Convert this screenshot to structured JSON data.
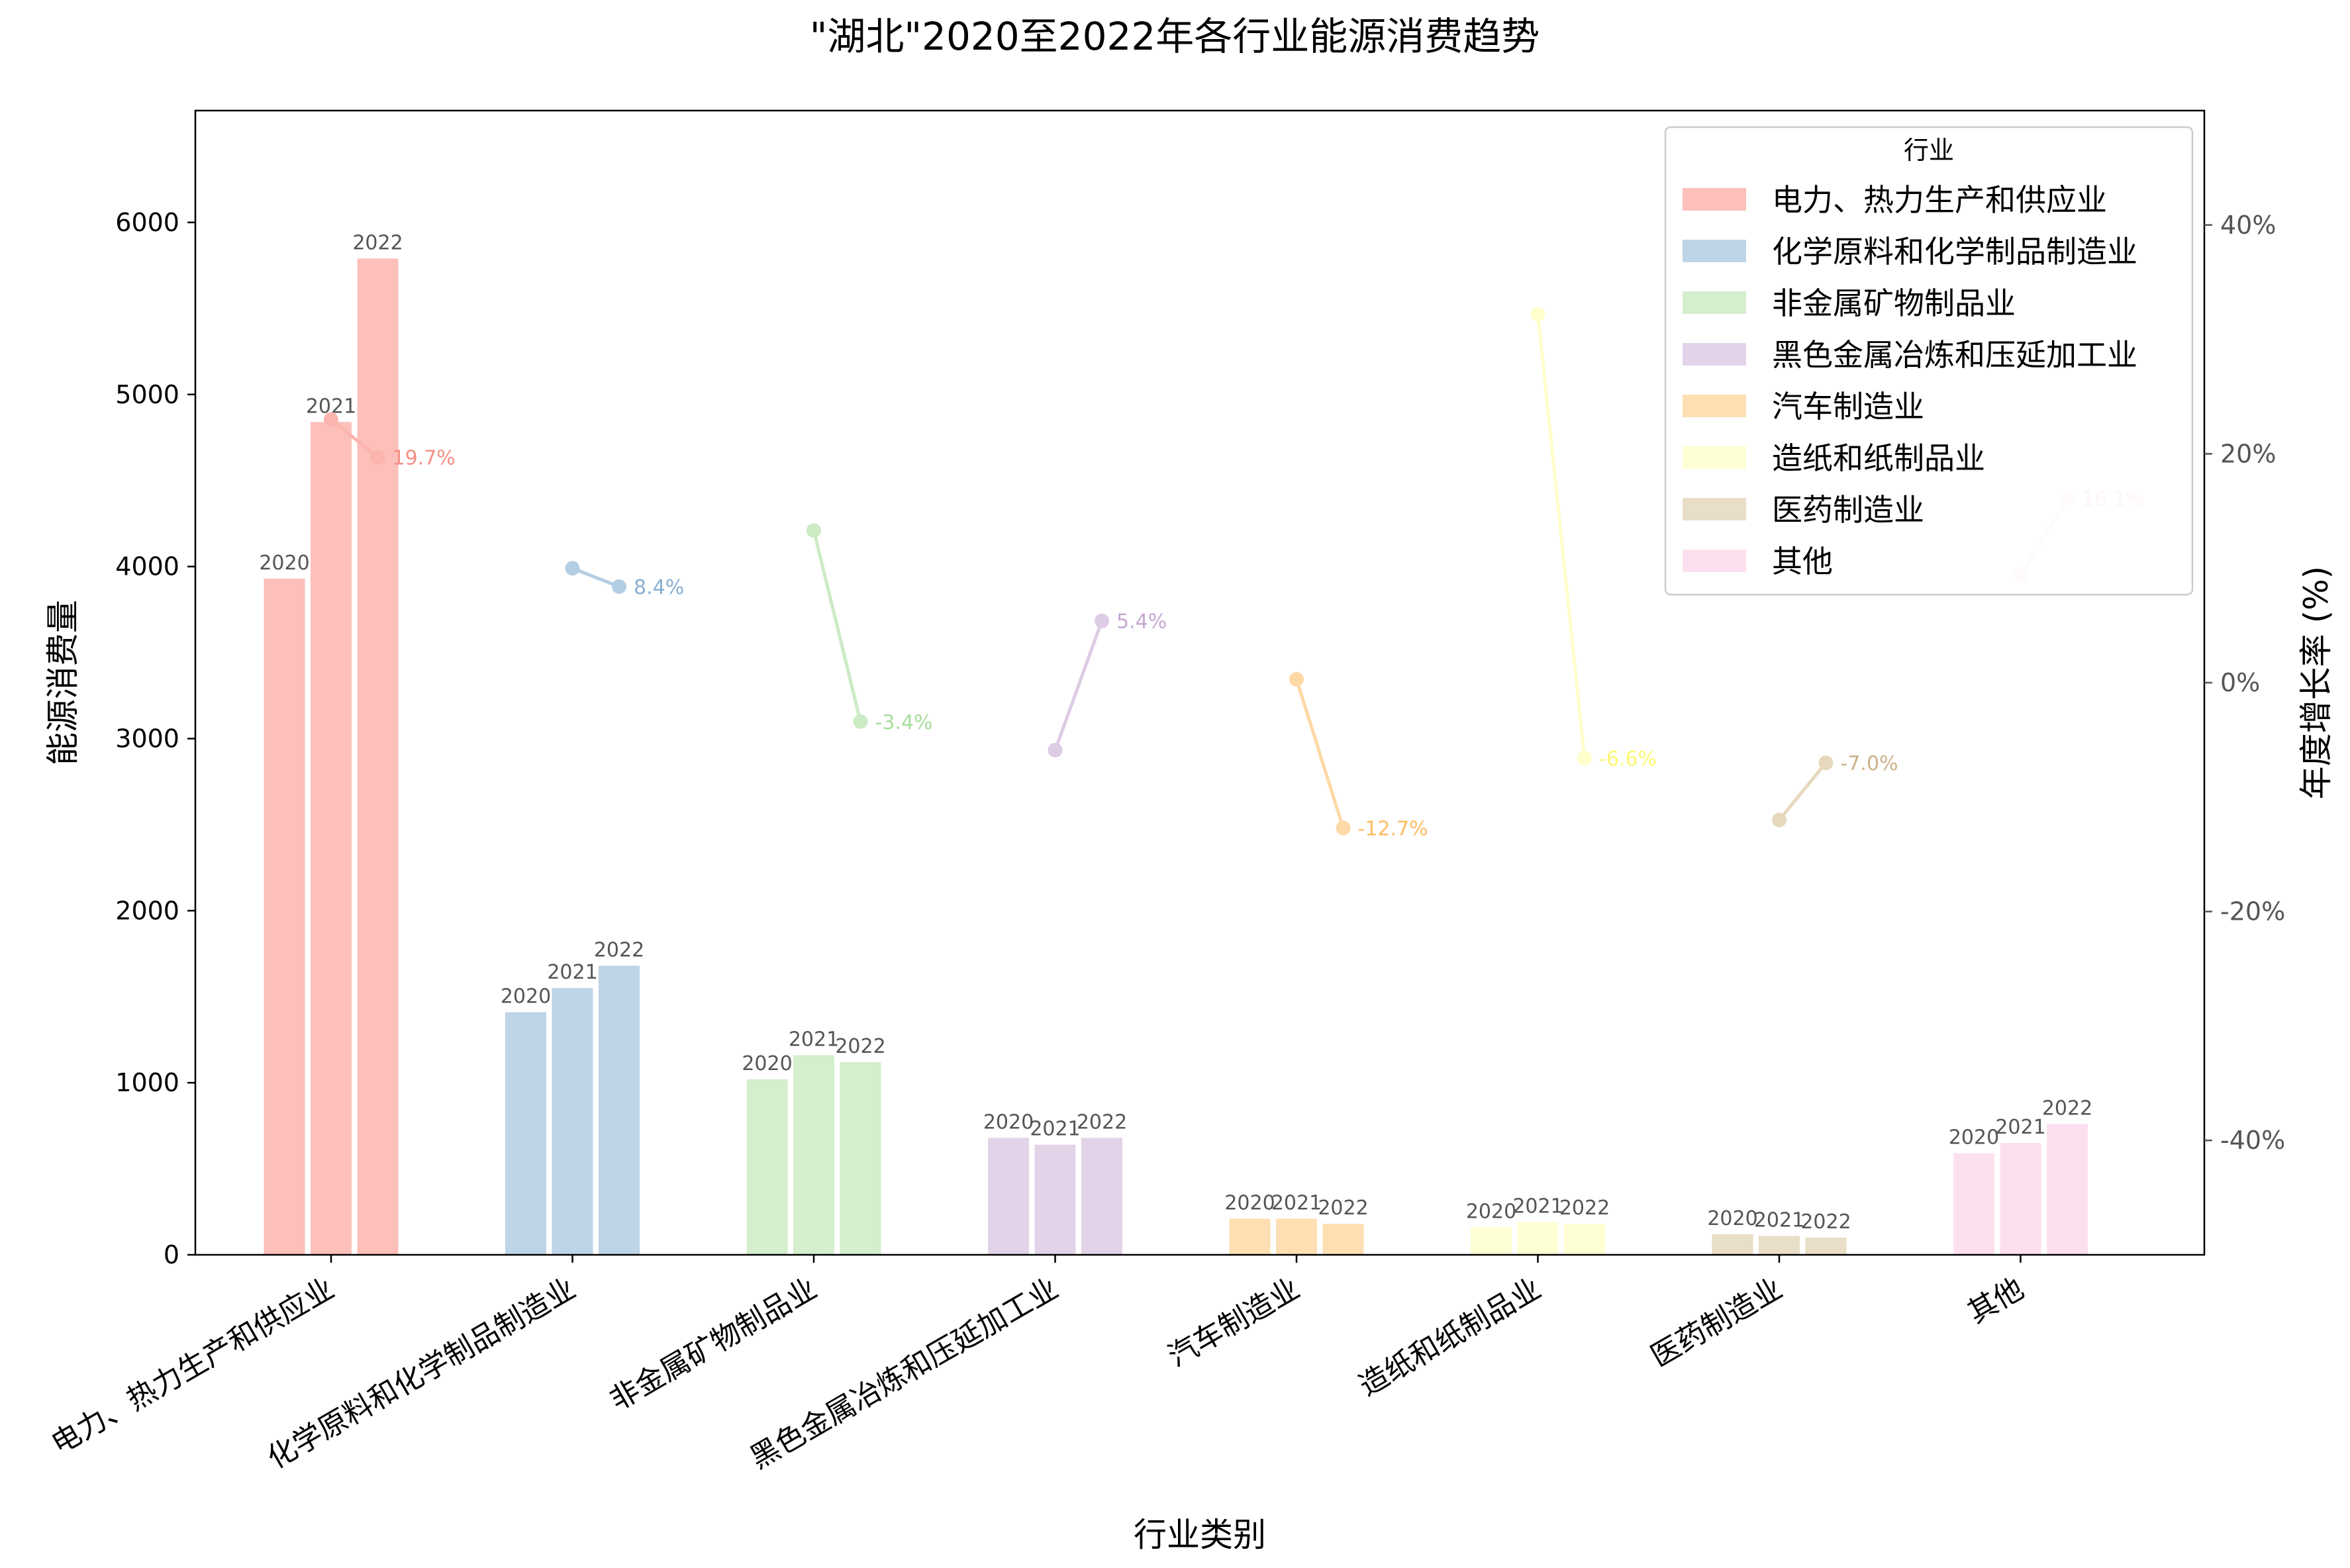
{
  "chart_data": {
    "type": "bar",
    "title": "\"湖北\"2020至2022年各行业能源消费趋势",
    "xlabel": "行业类别",
    "ylabel": "能源消费量",
    "y2label": "年度增长率 (%)",
    "ylim": [
      0,
      6650
    ],
    "y2lim": [
      -50,
      50
    ],
    "yticks": [
      0,
      1000,
      2000,
      3000,
      4000,
      5000,
      6000
    ],
    "y2ticks": [
      -40,
      -20,
      0,
      20,
      40
    ],
    "y2tick_labels": [
      "-40%",
      "-20%",
      "0%",
      "20%",
      "40%"
    ],
    "years": [
      "2020",
      "2021",
      "2022"
    ],
    "legend_title": "行业",
    "legend_position": "top-right",
    "grid": false,
    "categories": [
      "电力、热力生产和供应业",
      "化学原料和化学制品制造业",
      "非金属矿物制品业",
      "黑色金属冶炼和压延加工业",
      "汽车制造业",
      "造纸和纸制品业",
      "医药制造业",
      "其他"
    ],
    "colors": [
      "#fbb4ae",
      "#b3cde3",
      "#ccebc5",
      "#decbe4",
      "#fed9a6",
      "#ffffcc",
      "#e5d8bd",
      "#fddaec"
    ],
    "label_colors": [
      "#f58f86",
      "#88aed2",
      "#a8dc9d",
      "#c6a7d1",
      "#fdbd63",
      "#fdf770",
      "#ccb28a",
      "#fab3d4"
    ],
    "series": [
      {
        "name": "2020",
        "values": [
          3930,
          1410,
          1020,
          680,
          210,
          160,
          120,
          590
        ]
      },
      {
        "name": "2021",
        "values": [
          4840,
          1550,
          1160,
          640,
          210,
          190,
          110,
          650
        ]
      },
      {
        "name": "2022",
        "values": [
          5790,
          1680,
          1120,
          680,
          180,
          180,
          100,
          760
        ]
      }
    ],
    "growth_rates": [
      [
        23.0,
        19.7
      ],
      [
        10.0,
        8.4
      ],
      [
        13.3,
        -3.4
      ],
      [
        -5.9,
        5.4
      ],
      [
        0.3,
        -12.7
      ],
      [
        32.2,
        -6.6
      ],
      [
        -12.0,
        -7.0
      ],
      [
        9.4,
        16.1
      ]
    ],
    "growth_labels": [
      "19.7%",
      "8.4%",
      "-3.4%",
      "5.4%",
      "-12.7%",
      "-6.6%",
      "-7.0%",
      "16.1%"
    ]
  }
}
